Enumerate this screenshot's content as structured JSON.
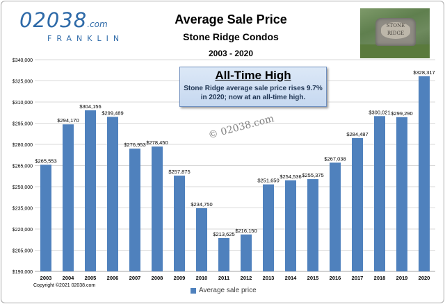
{
  "logo": {
    "brand": "02038",
    "domain_suffix": ".com",
    "sub": "FRANKLIN"
  },
  "photo_sign": {
    "line1": "STONE",
    "line2": "RIDGE"
  },
  "callout": {
    "head": "All-Time High",
    "body": "Stone Ridge average sale price rises 9.7% in 2020; now at an all-time high."
  },
  "watermark": "© 02038.com",
  "copyright": "Copyright ©2021 02038.com",
  "colors": {
    "bar": "#4f81bd",
    "callout_bg": "#c6d8f0",
    "logo": "#2e6aa8"
  },
  "chart_data": {
    "type": "bar",
    "title": "Average Sale Price",
    "subtitle": "Stone Ridge Condos",
    "subtitle2": "2003 - 2020",
    "categories": [
      "2003",
      "2004",
      "2005",
      "2006",
      "2007",
      "2008",
      "2009",
      "2010",
      "2011",
      "2012",
      "2013",
      "2014",
      "2015",
      "2016",
      "2017",
      "2018",
      "2019",
      "2020"
    ],
    "series": [
      {
        "name": "Average sale price",
        "values": [
          265553,
          294170,
          304156,
          299489,
          276953,
          278450,
          257875,
          234750,
          213625,
          216150,
          251650,
          254536,
          255375,
          267038,
          284487,
          300021,
          299290,
          328317
        ]
      }
    ],
    "data_labels": [
      "$265,553",
      "$294,170",
      "$304,156",
      "$299,489",
      "$276,953",
      "$278,450",
      "$257,875",
      "$234,750",
      "$213,625",
      "$216,150",
      "$251,650",
      "$254,536",
      "$255,375",
      "$267,038",
      "$284,487",
      "$300,021",
      "$299,290",
      "$328,317"
    ],
    "y_ticks": [
      "$190,000",
      "$205,000",
      "$220,000",
      "$235,000",
      "$250,000",
      "$265,000",
      "$280,000",
      "$295,000",
      "$310,000",
      "$325,000",
      "$340,000"
    ],
    "ylim": [
      190000,
      340000
    ],
    "ytick_step": 15000,
    "grid": true,
    "legend_position": "bottom",
    "xlabel": "",
    "ylabel": ""
  }
}
